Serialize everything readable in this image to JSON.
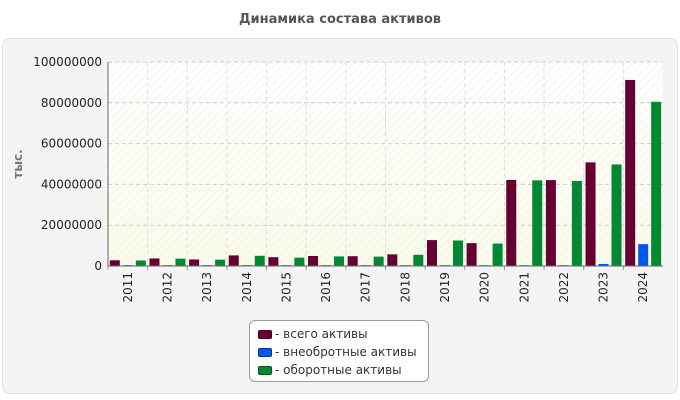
{
  "chart_data": {
    "type": "bar",
    "title": "Динамика состава активов",
    "xlabel": "",
    "ylabel": "тыс.",
    "ylim": [
      0,
      100000000
    ],
    "yticks": [
      "0",
      "20000000",
      "40000000",
      "60000000",
      "80000000",
      "100000000"
    ],
    "ytick_values": [
      0,
      20000000,
      40000000,
      60000000,
      80000000,
      100000000
    ],
    "categories": [
      "2011",
      "2012",
      "2013",
      "2014",
      "2015",
      "2016",
      "2017",
      "2018",
      "2019",
      "2020",
      "2021",
      "2022",
      "2023",
      "2024"
    ],
    "series": [
      {
        "name": "- всего активы",
        "color": "#660033",
        "values": [
          2800000,
          3700000,
          3200000,
          5200000,
          4300000,
          4900000,
          4800000,
          5700000,
          12700000,
          11200000,
          42200000,
          42100000,
          50800000,
          91200000
        ]
      },
      {
        "name": "- внеобротные активы",
        "color": "#0055ee",
        "values": [
          100000,
          100000,
          100000,
          200000,
          200000,
          200000,
          200000,
          200000,
          200000,
          200000,
          200000,
          400000,
          1000000,
          10700000
        ]
      },
      {
        "name": "- оборотные активы",
        "color": "#008833",
        "values": [
          2700000,
          3600000,
          3100000,
          5000000,
          4100000,
          4700000,
          4600000,
          5500000,
          12500000,
          11000000,
          42000000,
          41700000,
          49800000,
          80500000
        ]
      }
    ],
    "grid": true,
    "legend": "bottom-center"
  }
}
